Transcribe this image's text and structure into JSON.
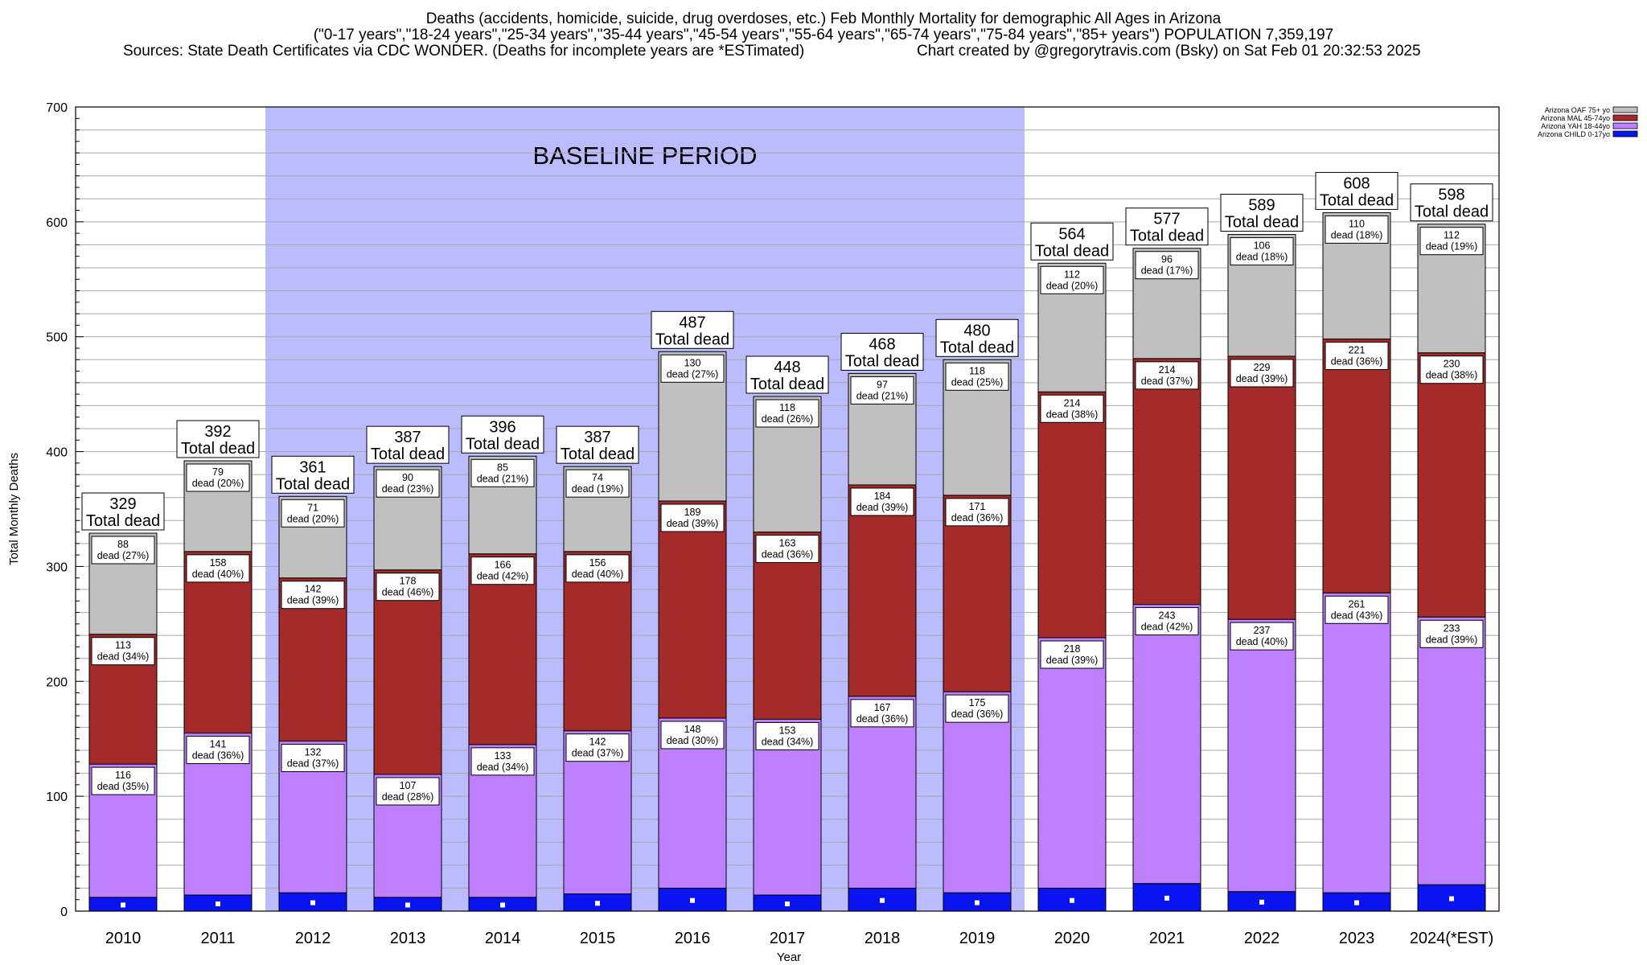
{
  "header": {
    "line1": "Deaths (accidents, homicide, suicide, drug overdoses, etc.) Feb Monthly Mortality for demographic All Ages in Arizona",
    "line2": "(\"0-17 years\",\"18-24 years\",\"25-34 years\",\"35-44 years\",\"45-54 years\",\"55-64 years\",\"65-74 years\",\"75-84 years\",\"85+ years\") POPULATION 7,359,197",
    "line3_left": "Sources: State Death Certificates via CDC WONDER. (Deaths for incomplete years are *ESTimated)",
    "line3_right": "Chart created by @gregorytravis.com (Bsky) on Sat Feb 01 20:32:53 2025"
  },
  "chart_data": {
    "type": "bar",
    "stacked": true,
    "title": "",
    "xlabel": "Year",
    "ylabel": "Total Monthly Deaths",
    "ylim": [
      0,
      700
    ],
    "yticks": [
      0,
      100,
      200,
      300,
      400,
      500,
      600,
      700
    ],
    "grid": true,
    "legend_position": "top-right",
    "categories": [
      "2010",
      "2011",
      "2012",
      "2013",
      "2014",
      "2015",
      "2016",
      "2017",
      "2018",
      "2019",
      "2020",
      "2021",
      "2022",
      "2023",
      "2024(*EST)"
    ],
    "series": [
      {
        "name": "Arizona CHILD 0-17yo",
        "color": "#0a14f0",
        "values": [
          12,
          14,
          16,
          12,
          12,
          15,
          20,
          14,
          20,
          16,
          20,
          24,
          17,
          16,
          23
        ]
      },
      {
        "name": "Arizona YAH 18-44yo",
        "color": "#bf80ff",
        "values": [
          116,
          141,
          132,
          107,
          133,
          142,
          148,
          153,
          167,
          175,
          218,
          243,
          237,
          261,
          233
        ],
        "labels": [
          "dead (35%)",
          "dead (36%)",
          "dead (37%)",
          "dead (28%)",
          "dead (34%)",
          "dead (37%)",
          "dead (30%)",
          "dead (34%)",
          "dead (36%)",
          "dead (36%)",
          "dead (39%)",
          "dead (42%)",
          "dead (40%)",
          "dead (43%)",
          "dead (39%)"
        ]
      },
      {
        "name": "Arizona MAL 45-74yo",
        "color": "#a52a2a",
        "values": [
          113,
          158,
          142,
          178,
          166,
          156,
          189,
          163,
          184,
          171,
          214,
          214,
          229,
          221,
          230
        ],
        "labels": [
          "dead (34%)",
          "dead (40%)",
          "dead (39%)",
          "dead (46%)",
          "dead (42%)",
          "dead (40%)",
          "dead (39%)",
          "dead (36%)",
          "dead (39%)",
          "dead (36%)",
          "dead (38%)",
          "dead (37%)",
          "dead (39%)",
          "dead (36%)",
          "dead (38%)"
        ]
      },
      {
        "name": "Arizona OAF 75+ yo",
        "color": "#c0c0c0",
        "values": [
          88,
          79,
          71,
          90,
          85,
          74,
          130,
          118,
          97,
          118,
          112,
          96,
          106,
          110,
          112
        ],
        "labels": [
          "dead (27%)",
          "dead (20%)",
          "dead (20%)",
          "dead (23%)",
          "dead (21%)",
          "dead (19%)",
          "dead (27%)",
          "dead (26%)",
          "dead (21%)",
          "dead (25%)",
          "dead (20%)",
          "dead (17%)",
          "dead (18%)",
          "dead (18%)",
          "dead (19%)"
        ]
      }
    ],
    "totals": [
      329,
      392,
      361,
      387,
      396,
      387,
      487,
      448,
      468,
      480,
      564,
      577,
      589,
      608,
      598
    ],
    "total_label": "Total dead",
    "annotation": {
      "text": "BASELINE PERIOD",
      "from_category": "2012",
      "to_category": "2019",
      "color": "#bbbbff"
    }
  }
}
